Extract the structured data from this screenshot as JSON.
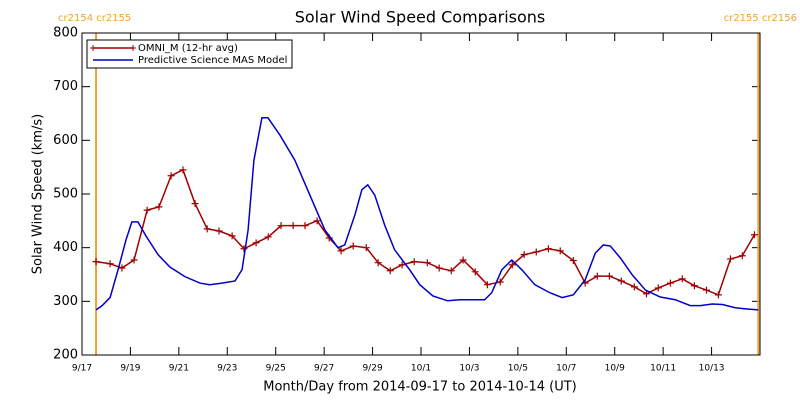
{
  "chart_data": {
    "type": "line",
    "title": "Solar Wind Speed Comparisons",
    "xlabel": "Month/Day from 2014-09-17 to 2014-10-14 (UT)",
    "ylabel": "Solar Wind Speed (km/s)",
    "xlim": [
      0,
      28
    ],
    "ylim": [
      200,
      800
    ],
    "xticks": [
      {
        "value": 0,
        "label": "9/17"
      },
      {
        "value": 2,
        "label": "9/19"
      },
      {
        "value": 4,
        "label": "9/21"
      },
      {
        "value": 6,
        "label": "9/23"
      },
      {
        "value": 8,
        "label": "9/25"
      },
      {
        "value": 10,
        "label": "9/27"
      },
      {
        "value": 12,
        "label": "9/29"
      },
      {
        "value": 14,
        "label": "10/1"
      },
      {
        "value": 16,
        "label": "10/3"
      },
      {
        "value": 18,
        "label": "10/5"
      },
      {
        "value": 20,
        "label": "10/7"
      },
      {
        "value": 22,
        "label": "10/9"
      },
      {
        "value": 24,
        "label": "10/11"
      },
      {
        "value": 26,
        "label": "10/13"
      }
    ],
    "yticks": [
      200,
      300,
      400,
      500,
      600,
      700,
      800
    ],
    "legend": "top-left",
    "markers": [
      {
        "x": 0.58,
        "label": "cr2154 cr2155",
        "color": "#f5a030"
      },
      {
        "x": 27.93,
        "label": "cr2155 cr2156",
        "color": "#f5a030"
      }
    ],
    "series": [
      {
        "name": "OMNI_M (12-hr avg)",
        "color": "#a00000",
        "marker": "plus",
        "x": [
          0.58,
          1.16,
          1.65,
          2.15,
          2.69,
          3.18,
          3.68,
          4.17,
          4.67,
          5.17,
          5.66,
          6.2,
          6.69,
          7.19,
          7.69,
          8.22,
          8.72,
          9.21,
          9.71,
          10.21,
          10.7,
          11.2,
          11.74,
          12.23,
          12.73,
          13.22,
          13.72,
          14.26,
          14.75,
          15.25,
          15.74,
          16.24,
          16.74,
          17.27,
          17.77,
          18.26,
          18.76,
          19.26,
          19.75,
          20.29,
          20.78,
          21.28,
          21.78,
          22.27,
          22.81,
          23.31,
          23.8,
          24.3,
          24.79,
          25.29,
          25.79,
          26.28,
          26.78,
          27.27,
          27.77
        ],
        "values": [
          374,
          370,
          362,
          377,
          470,
          476,
          534,
          545,
          482,
          435,
          431,
          422,
          398,
          409,
          420,
          441,
          441,
          441,
          450,
          418,
          394,
          403,
          400,
          372,
          357,
          368,
          374,
          372,
          362,
          357,
          377,
          355,
          331,
          336,
          368,
          387,
          392,
          398,
          394,
          376,
          334,
          347,
          347,
          338,
          327,
          314,
          325,
          334,
          342,
          329,
          321,
          312,
          379,
          385,
          424
        ]
      },
      {
        "name": "Predictive Science MAS Model",
        "color": "#0000cc",
        "marker": "none",
        "x": [
          0.58,
          0.83,
          1.16,
          1.49,
          1.82,
          2.06,
          2.31,
          2.64,
          3.14,
          3.63,
          4.25,
          4.87,
          5.28,
          5.78,
          6.32,
          6.61,
          6.86,
          7.1,
          7.43,
          7.68,
          8.17,
          8.79,
          9.41,
          10.03,
          10.57,
          10.85,
          11.27,
          11.56,
          11.8,
          12.09,
          12.5,
          12.91,
          13.53,
          13.95,
          14.49,
          15.1,
          15.6,
          16.22,
          16.63,
          16.92,
          17.34,
          17.75,
          18.16,
          18.7,
          19.32,
          19.83,
          20.29,
          20.78,
          21.2,
          21.53,
          21.82,
          22.23,
          22.73,
          23.27,
          23.88,
          24.5,
          25.12,
          25.54,
          26.03,
          26.45,
          26.98,
          27.4,
          27.93
        ],
        "values": [
          284,
          292,
          307,
          359,
          415,
          448,
          448,
          422,
          387,
          364,
          346,
          334,
          331,
          334,
          338,
          359,
          433,
          563,
          642,
          642,
          610,
          563,
          498,
          433,
          400,
          405,
          461,
          508,
          517,
          498,
          442,
          396,
          359,
          331,
          310,
          301,
          303,
          303,
          303,
          316,
          359,
          377,
          359,
          331,
          316,
          307,
          312,
          340,
          390,
          405,
          403,
          381,
          349,
          321,
          308,
          303,
          292,
          292,
          295,
          294,
          288,
          286,
          284
        ]
      }
    ]
  }
}
